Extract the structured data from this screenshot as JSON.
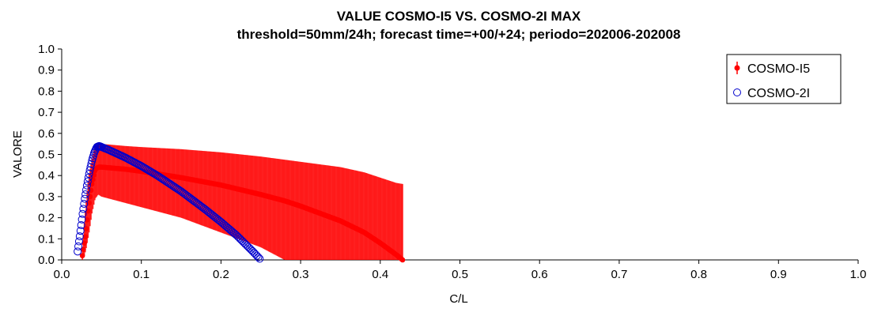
{
  "chart_data": {
    "type": "scatter",
    "title": "VALUE COSMO-I5 VS. COSMO-2I MAX",
    "subtitle": "threshold=50mm/24h; forecast time=+00/+24; periodo=202006-202008",
    "xlabel": "C/L",
    "ylabel": "VALORE",
    "xlim": [
      0.0,
      1.0
    ],
    "ylim": [
      0.0,
      1.0
    ],
    "x_ticks": [
      "0.0",
      "0.1",
      "0.2",
      "0.3",
      "0.4",
      "0.5",
      "0.6",
      "0.7",
      "0.8",
      "0.9",
      "1.0"
    ],
    "y_ticks": [
      "0.0",
      "0.1",
      "0.2",
      "0.3",
      "0.4",
      "0.5",
      "0.6",
      "0.7",
      "0.8",
      "0.9",
      "1.0"
    ],
    "grid": false,
    "legend_position": "top-right",
    "series": [
      {
        "name": "COSMO-I5",
        "color": "#ff0000",
        "marker": "filled-circle-with-errorbar",
        "points": [
          {
            "x": 0.026,
            "y": 0.02,
            "low": 0.0,
            "high": 0.06
          },
          {
            "x": 0.03,
            "y": 0.12,
            "low": 0.04,
            "high": 0.25
          },
          {
            "x": 0.034,
            "y": 0.26,
            "low": 0.12,
            "high": 0.4
          },
          {
            "x": 0.038,
            "y": 0.36,
            "low": 0.22,
            "high": 0.48
          },
          {
            "x": 0.042,
            "y": 0.43,
            "low": 0.29,
            "high": 0.54
          },
          {
            "x": 0.046,
            "y": 0.44,
            "low": 0.31,
            "high": 0.55
          },
          {
            "x": 0.05,
            "y": 0.44,
            "low": 0.3,
            "high": 0.55
          },
          {
            "x": 0.08,
            "y": 0.43,
            "low": 0.27,
            "high": 0.54
          },
          {
            "x": 0.1,
            "y": 0.42,
            "low": 0.25,
            "high": 0.535
          },
          {
            "x": 0.15,
            "y": 0.39,
            "low": 0.2,
            "high": 0.525
          },
          {
            "x": 0.2,
            "y": 0.355,
            "low": 0.13,
            "high": 0.51
          },
          {
            "x": 0.25,
            "y": 0.31,
            "low": 0.06,
            "high": 0.49
          },
          {
            "x": 0.28,
            "y": 0.28,
            "low": 0.0,
            "high": 0.475
          },
          {
            "x": 0.3,
            "y": 0.255,
            "low": 0.0,
            "high": 0.465
          },
          {
            "x": 0.35,
            "y": 0.185,
            "low": 0.0,
            "high": 0.44
          },
          {
            "x": 0.38,
            "y": 0.13,
            "low": 0.0,
            "high": 0.415
          },
          {
            "x": 0.4,
            "y": 0.08,
            "low": 0.0,
            "high": 0.39
          },
          {
            "x": 0.42,
            "y": 0.025,
            "low": 0.0,
            "high": 0.365
          },
          {
            "x": 0.428,
            "y": 0.0,
            "low": 0.0,
            "high": 0.36
          }
        ]
      },
      {
        "name": "COSMO-2I",
        "color": "#0000cc",
        "marker": "open-circle",
        "points": [
          {
            "x": 0.02,
            "y": 0.04
          },
          {
            "x": 0.023,
            "y": 0.12
          },
          {
            "x": 0.026,
            "y": 0.21
          },
          {
            "x": 0.029,
            "y": 0.29
          },
          {
            "x": 0.032,
            "y": 0.36
          },
          {
            "x": 0.035,
            "y": 0.42
          },
          {
            "x": 0.038,
            "y": 0.47
          },
          {
            "x": 0.041,
            "y": 0.51
          },
          {
            "x": 0.044,
            "y": 0.535
          },
          {
            "x": 0.047,
            "y": 0.54
          },
          {
            "x": 0.06,
            "y": 0.52
          },
          {
            "x": 0.08,
            "y": 0.485
          },
          {
            "x": 0.1,
            "y": 0.445
          },
          {
            "x": 0.12,
            "y": 0.4
          },
          {
            "x": 0.15,
            "y": 0.325
          },
          {
            "x": 0.18,
            "y": 0.24
          },
          {
            "x": 0.2,
            "y": 0.18
          },
          {
            "x": 0.22,
            "y": 0.115
          },
          {
            "x": 0.24,
            "y": 0.04
          },
          {
            "x": 0.25,
            "y": 0.0
          }
        ]
      }
    ]
  }
}
